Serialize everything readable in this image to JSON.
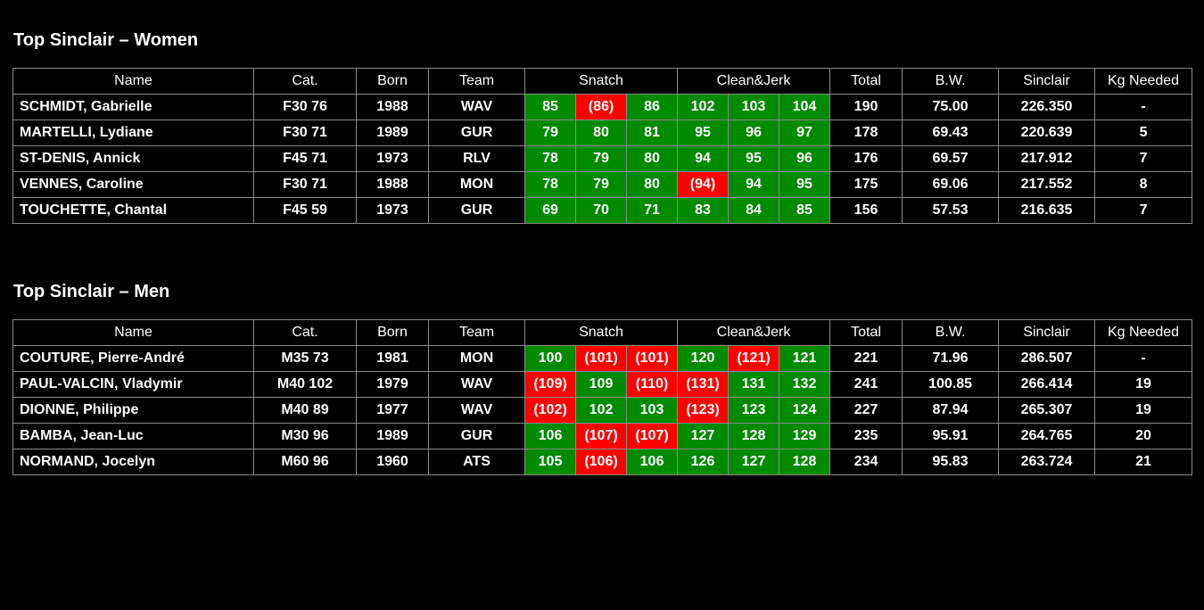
{
  "headers": {
    "name": "Name",
    "cat": "Cat.",
    "born": "Born",
    "team": "Team",
    "snatch": "Snatch",
    "cleanjerk": "Clean&Jerk",
    "total": "Total",
    "bw": "B.W.",
    "sinclair": "Sinclair",
    "kg_needed": "Kg Needed"
  },
  "colors": {
    "good_lift": "#008a00",
    "bad_lift": "#ff0000",
    "background": "#000000"
  },
  "sections": [
    {
      "title": "Top Sinclair – Women",
      "rows": [
        {
          "name": "SCHMIDT, Gabrielle",
          "cat": "F30 76",
          "born": "1988",
          "team": "WAV",
          "snatch": [
            {
              "v": "85",
              "ok": true
            },
            {
              "v": "(86)",
              "ok": false
            },
            {
              "v": "86",
              "ok": true
            }
          ],
          "cj": [
            {
              "v": "102",
              "ok": true
            },
            {
              "v": "103",
              "ok": true
            },
            {
              "v": "104",
              "ok": true
            }
          ],
          "total": "190",
          "bw": "75.00",
          "sinclair": "226.350",
          "kg": "-"
        },
        {
          "name": "MARTELLI, Lydiane",
          "cat": "F30 71",
          "born": "1989",
          "team": "GUR",
          "snatch": [
            {
              "v": "79",
              "ok": true
            },
            {
              "v": "80",
              "ok": true
            },
            {
              "v": "81",
              "ok": true
            }
          ],
          "cj": [
            {
              "v": "95",
              "ok": true
            },
            {
              "v": "96",
              "ok": true
            },
            {
              "v": "97",
              "ok": true
            }
          ],
          "total": "178",
          "bw": "69.43",
          "sinclair": "220.639",
          "kg": "5"
        },
        {
          "name": "ST-DENIS, Annick",
          "cat": "F45 71",
          "born": "1973",
          "team": "RLV",
          "snatch": [
            {
              "v": "78",
              "ok": true
            },
            {
              "v": "79",
              "ok": true
            },
            {
              "v": "80",
              "ok": true
            }
          ],
          "cj": [
            {
              "v": "94",
              "ok": true
            },
            {
              "v": "95",
              "ok": true
            },
            {
              "v": "96",
              "ok": true
            }
          ],
          "total": "176",
          "bw": "69.57",
          "sinclair": "217.912",
          "kg": "7"
        },
        {
          "name": "VENNES, Caroline",
          "cat": "F30 71",
          "born": "1988",
          "team": "MON",
          "snatch": [
            {
              "v": "78",
              "ok": true
            },
            {
              "v": "79",
              "ok": true
            },
            {
              "v": "80",
              "ok": true
            }
          ],
          "cj": [
            {
              "v": "(94)",
              "ok": false
            },
            {
              "v": "94",
              "ok": true
            },
            {
              "v": "95",
              "ok": true
            }
          ],
          "total": "175",
          "bw": "69.06",
          "sinclair": "217.552",
          "kg": "8"
        },
        {
          "name": "TOUCHETTE, Chantal",
          "cat": "F45 59",
          "born": "1973",
          "team": "GUR",
          "snatch": [
            {
              "v": "69",
              "ok": true
            },
            {
              "v": "70",
              "ok": true
            },
            {
              "v": "71",
              "ok": true
            }
          ],
          "cj": [
            {
              "v": "83",
              "ok": true
            },
            {
              "v": "84",
              "ok": true
            },
            {
              "v": "85",
              "ok": true
            }
          ],
          "total": "156",
          "bw": "57.53",
          "sinclair": "216.635",
          "kg": "7"
        }
      ]
    },
    {
      "title": "Top Sinclair – Men",
      "rows": [
        {
          "name": "COUTURE, Pierre-André",
          "cat": "M35 73",
          "born": "1981",
          "team": "MON",
          "snatch": [
            {
              "v": "100",
              "ok": true
            },
            {
              "v": "(101)",
              "ok": false
            },
            {
              "v": "(101)",
              "ok": false
            }
          ],
          "cj": [
            {
              "v": "120",
              "ok": true
            },
            {
              "v": "(121)",
              "ok": false
            },
            {
              "v": "121",
              "ok": true
            }
          ],
          "total": "221",
          "bw": "71.96",
          "sinclair": "286.507",
          "kg": "-"
        },
        {
          "name": "PAUL-VALCIN, Vladymir",
          "cat": "M40 102",
          "born": "1979",
          "team": "WAV",
          "snatch": [
            {
              "v": "(109)",
              "ok": false
            },
            {
              "v": "109",
              "ok": true
            },
            {
              "v": "(110)",
              "ok": false
            }
          ],
          "cj": [
            {
              "v": "(131)",
              "ok": false
            },
            {
              "v": "131",
              "ok": true
            },
            {
              "v": "132",
              "ok": true
            }
          ],
          "total": "241",
          "bw": "100.85",
          "sinclair": "266.414",
          "kg": "19"
        },
        {
          "name": "DIONNE, Philippe",
          "cat": "M40 89",
          "born": "1977",
          "team": "WAV",
          "snatch": [
            {
              "v": "(102)",
              "ok": false
            },
            {
              "v": "102",
              "ok": true
            },
            {
              "v": "103",
              "ok": true
            }
          ],
          "cj": [
            {
              "v": "(123)",
              "ok": false
            },
            {
              "v": "123",
              "ok": true
            },
            {
              "v": "124",
              "ok": true
            }
          ],
          "total": "227",
          "bw": "87.94",
          "sinclair": "265.307",
          "kg": "19"
        },
        {
          "name": "BAMBA, Jean-Luc",
          "cat": "M30 96",
          "born": "1989",
          "team": "GUR",
          "snatch": [
            {
              "v": "106",
              "ok": true
            },
            {
              "v": "(107)",
              "ok": false
            },
            {
              "v": "(107)",
              "ok": false
            }
          ],
          "cj": [
            {
              "v": "127",
              "ok": true
            },
            {
              "v": "128",
              "ok": true
            },
            {
              "v": "129",
              "ok": true
            }
          ],
          "total": "235",
          "bw": "95.91",
          "sinclair": "264.765",
          "kg": "20"
        },
        {
          "name": "NORMAND, Jocelyn",
          "cat": "M60 96",
          "born": "1960",
          "team": "ATS",
          "snatch": [
            {
              "v": "105",
              "ok": true
            },
            {
              "v": "(106)",
              "ok": false
            },
            {
              "v": "106",
              "ok": true
            }
          ],
          "cj": [
            {
              "v": "126",
              "ok": true
            },
            {
              "v": "127",
              "ok": true
            },
            {
              "v": "128",
              "ok": true
            }
          ],
          "total": "234",
          "bw": "95.83",
          "sinclair": "263.724",
          "kg": "21"
        }
      ]
    }
  ]
}
